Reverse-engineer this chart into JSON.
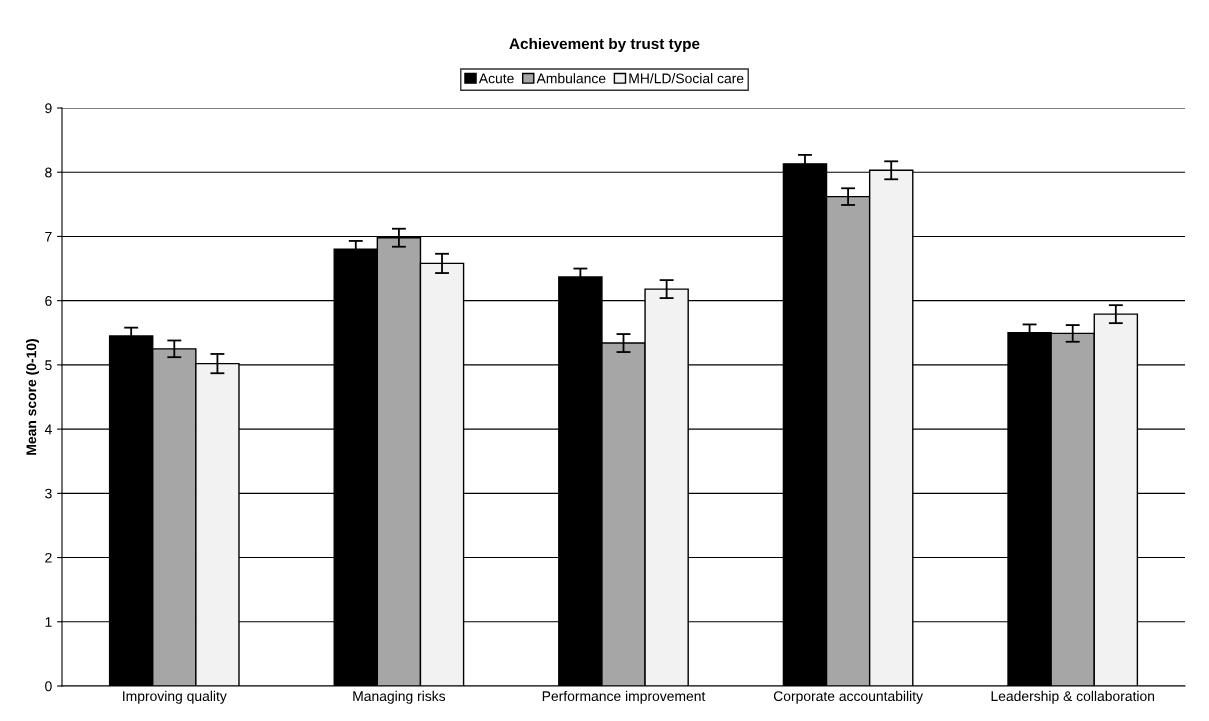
{
  "chart_data": {
    "type": "bar",
    "title": "Achievement by trust type",
    "ylabel": "Mean score (0-10)",
    "categories": [
      "Improving quality",
      "Managing risks",
      "Performance improvement",
      "Corporate accountability",
      "Leadership & collaboration"
    ],
    "series": [
      {
        "name": "Acute",
        "color": "#000000",
        "values": [
          5.45,
          6.8,
          6.37,
          8.13,
          5.5
        ],
        "errors": [
          0.13,
          0.13,
          0.13,
          0.14,
          0.13
        ]
      },
      {
        "name": "Ambulance",
        "color": "#a6a6a6",
        "values": [
          5.25,
          6.98,
          5.34,
          7.62,
          5.49
        ],
        "errors": [
          0.13,
          0.14,
          0.14,
          0.13,
          0.13
        ]
      },
      {
        "name": "MH/LD/Social care",
        "color": "#f2f2f2",
        "values": [
          5.02,
          6.58,
          6.18,
          8.03,
          5.79
        ],
        "errors": [
          0.15,
          0.15,
          0.14,
          0.14,
          0.14
        ]
      }
    ],
    "ylim": [
      0,
      9
    ],
    "yticks": [
      0,
      1,
      2,
      3,
      4,
      5,
      6,
      7,
      8,
      9
    ],
    "grid": "y",
    "legend": "top"
  }
}
